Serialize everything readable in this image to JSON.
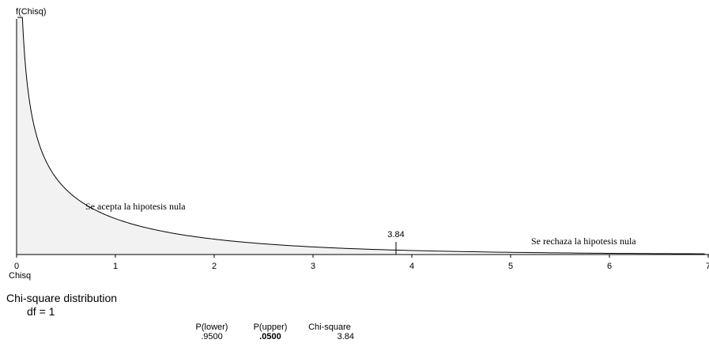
{
  "chart_data": {
    "type": "area",
    "distribution": "chi-square",
    "df": 1,
    "ylabel": "f(Chisq)",
    "xlabel": "Chisq",
    "xlim": [
      0,
      7
    ],
    "x_ticks": [
      "0",
      "1",
      "2",
      "3",
      "4",
      "5",
      "6",
      "7"
    ],
    "critical_value": 3.84,
    "critical_label": "3.84",
    "annotations": [
      {
        "text": "Se acepta la hipotesis nula",
        "x": 0.7,
        "y": 0.26
      },
      {
        "text": "Se rechaza la hipotesis nula",
        "x": 5.2,
        "y": 0.048
      }
    ],
    "shaded_region": [
      0,
      3.84
    ],
    "shade_color": "#f2f2f2",
    "line_color": "#000000"
  },
  "summary": {
    "title": "Chi-square distribution",
    "df_label": "df =  1",
    "columns": [
      {
        "header": "P(lower)",
        "value": ".9500",
        "bold": false
      },
      {
        "header": "P(upper)",
        "value": ".0500",
        "bold": true
      },
      {
        "header": "Chi-square",
        "value": "3.84",
        "bold": false
      }
    ]
  }
}
